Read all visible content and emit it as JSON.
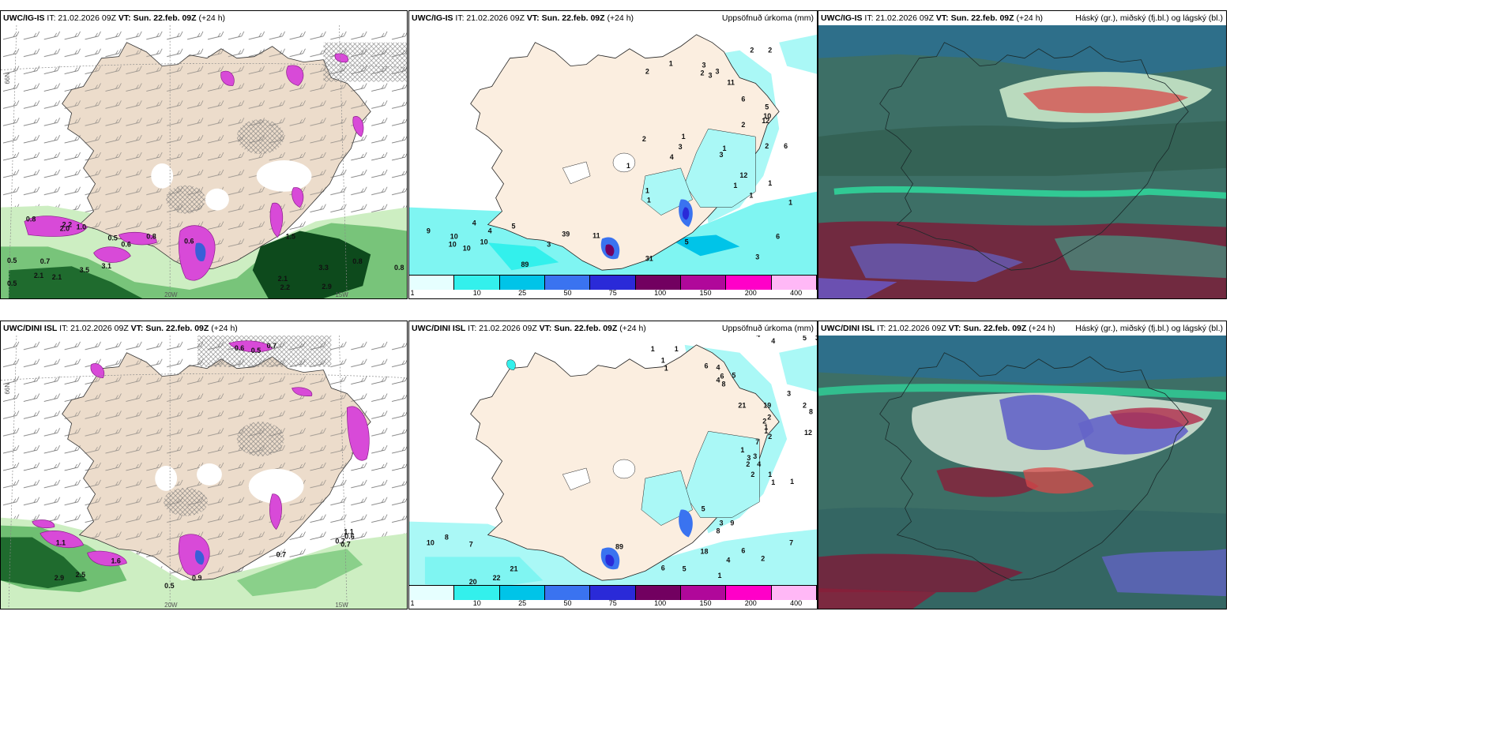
{
  "panels": [
    {
      "model": "UWC/IG-IS",
      "it": "IT: 21.02.2026 09Z",
      "vt_label": "VT:",
      "vt": "Sun. 22.feb. 09Z",
      "lead": "(+24 h)",
      "right": ""
    },
    {
      "model": "UWC/IG-IS",
      "it": "IT: 21.02.2026 09Z",
      "vt_label": "VT:",
      "vt": "Sun. 22.feb. 09Z",
      "lead": "(+24 h)",
      "right": "Uppsöfnuð úrkoma (mm)"
    },
    {
      "model": "UWC/IG-IS",
      "it": "IT: 21.02.2026 09Z",
      "vt_label": "VT:",
      "vt": "Sun. 22.feb. 09Z",
      "lead": "(+24 h)",
      "right": "Háský (gr.), miðský (fj.bl.) og lágský (bl.)"
    },
    {
      "model": "UWC/DINI ISL",
      "it": "IT: 21.02.2026 09Z",
      "vt_label": "VT:",
      "vt": "Sun. 22.feb. 09Z",
      "lead": "(+24 h)",
      "right": ""
    },
    {
      "model": "UWC/DINI ISL",
      "it": "IT: 21.02.2026 09Z",
      "vt_label": "VT:",
      "vt": "Sun. 22.feb. 09Z",
      "lead": "(+24 h)",
      "right": "Uppsöfnuð úrkoma (mm)"
    },
    {
      "model": "UWC/DINI ISL",
      "it": "IT: 21.02.2026 09Z",
      "vt_label": "VT:",
      "vt": "Sun. 22.feb. 09Z",
      "lead": "(+24 h)",
      "right": "Háský (gr.), miðský (fj.bl.) og lágský (bl.)"
    }
  ],
  "legend": {
    "labels": [
      "1",
      "10",
      "25",
      "50",
      "75",
      "100",
      "150",
      "200",
      "400"
    ],
    "colors": [
      "#e6ffff",
      "#33f0ec",
      "#00c4e8",
      "#3a73f0",
      "#2a2ad8",
      "#720060",
      "#b0089a",
      "#ff00c8",
      "#ffb8f6"
    ]
  },
  "grid_labels": {
    "lat66": "66N",
    "lon20": "20W",
    "lon15": "15W"
  },
  "values": {
    "p1": [
      "0.8",
      "2.2",
      "1.0",
      "0.5",
      "0.8",
      "0.6",
      "0.5",
      "0.7",
      "2.1",
      "2.1",
      "3.5",
      "3.1",
      "2.0",
      "1.5",
      "0.8",
      "0.8",
      "3.3",
      "2.1",
      "2.2",
      "2.9",
      "0.5",
      "0.6"
    ],
    "p2": [
      "2",
      "2",
      "2",
      "1",
      "3",
      "2",
      "3",
      "3",
      "11",
      "6",
      "5",
      "10",
      "12",
      "2",
      "6",
      "2",
      "1",
      "1",
      "1",
      "2",
      "1",
      "3",
      "4",
      "3",
      "12",
      "1",
      "1",
      "1",
      "9",
      "10",
      "10",
      "10",
      "10",
      "4",
      "4",
      "5",
      "3",
      "39",
      "89",
      "11",
      "31",
      "5",
      "6",
      "3",
      "1",
      "1"
    ],
    "p4": [
      "0.6",
      "0.5",
      "0.7",
      "1.1",
      "1.6",
      "2.9",
      "2.5",
      "0.5",
      "0.9",
      "0.7",
      "0.7",
      "0.7",
      "1.1",
      "0.6"
    ],
    "p5": [
      "1",
      "1",
      "1",
      "1",
      "6",
      "4",
      "6",
      "4",
      "8",
      "5",
      "4",
      "4",
      "5",
      "3",
      "3",
      "2",
      "8",
      "12",
      "21",
      "19",
      "2",
      "2",
      "1",
      "1",
      "2",
      "1",
      "3",
      "3",
      "4",
      "2",
      "7",
      "2",
      "1",
      "1",
      "1",
      "10",
      "8",
      "7",
      "21",
      "20",
      "22",
      "89",
      "18",
      "3",
      "4",
      "6",
      "7",
      "9",
      "8",
      "5",
      "2",
      "5",
      "6",
      "1"
    ]
  },
  "colors": {
    "land": "#ecdccb",
    "sea_white": "#ffffff",
    "green_light": "#cdeec2",
    "green_mid": "#2f8a3e",
    "green_dark": "#0d4a1c",
    "magenta": "#d84ad8",
    "cyan_precip": "#55f5f0",
    "cloud_base": "#3a6a6a"
  }
}
